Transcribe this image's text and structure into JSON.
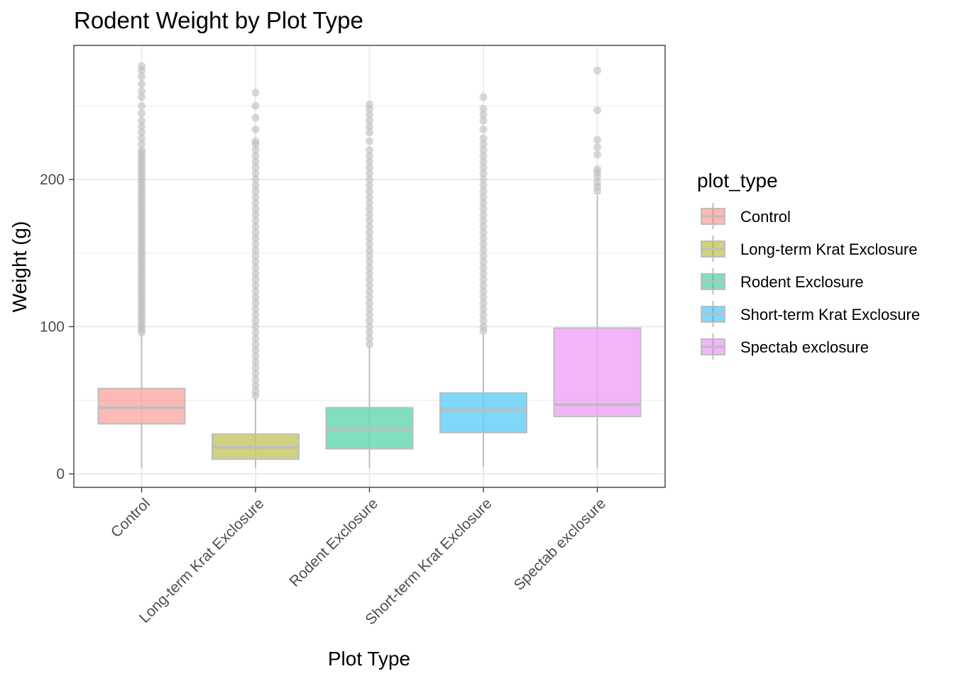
{
  "chart_data": {
    "type": "box",
    "title": "Rodent Weight by Plot Type",
    "xlabel": "Plot Type",
    "ylabel": "Weight (g)",
    "ylim": [
      -9,
      292
    ],
    "y_ticks": [
      0,
      100,
      200
    ],
    "grid": true,
    "legend": {
      "title": "plot_type",
      "position": "right",
      "entries": [
        {
          "label": "Control",
          "color": "#F8766D"
        },
        {
          "label": "Long-term Krat Exclosure",
          "color": "#A3A500"
        },
        {
          "label": "Rodent Exclosure",
          "color": "#00BF7D"
        },
        {
          "label": "Short-term Krat Exclosure",
          "color": "#00B0F6"
        },
        {
          "label": "Spectab exclosure",
          "color": "#E76BF3"
        }
      ]
    },
    "categories": [
      "Control",
      "Long-term Krat Exclosure",
      "Rodent Exclosure",
      "Short-term Krat Exclosure",
      "Spectab exclosure"
    ],
    "boxes": [
      {
        "category": "Control",
        "color": "#F8766D",
        "whisker_low": 4,
        "q1": 34,
        "median": 45,
        "q3": 58,
        "whisker_high": 94,
        "outliers": [
          96,
          98,
          100,
          102,
          104,
          106,
          108,
          110,
          112,
          114,
          116,
          118,
          120,
          122,
          124,
          126,
          128,
          130,
          132,
          134,
          136,
          138,
          140,
          142,
          144,
          146,
          148,
          150,
          152,
          154,
          156,
          158,
          160,
          162,
          164,
          166,
          168,
          170,
          172,
          174,
          176,
          178,
          180,
          182,
          184,
          186,
          188,
          190,
          192,
          194,
          196,
          198,
          200,
          202,
          204,
          206,
          208,
          210,
          212,
          214,
          216,
          218,
          220,
          224,
          228,
          232,
          236,
          240,
          245,
          250,
          256,
          260,
          265,
          270,
          274,
          277
        ]
      },
      {
        "category": "Long-term Krat Exclosure",
        "color": "#A3A500",
        "whisker_low": 4,
        "q1": 10,
        "median": 18,
        "q3": 27,
        "whisker_high": 51,
        "outliers": [
          53,
          56,
          60,
          64,
          68,
          72,
          76,
          80,
          84,
          88,
          92,
          96,
          100,
          104,
          108,
          112,
          116,
          120,
          124,
          128,
          132,
          136,
          140,
          144,
          148,
          152,
          156,
          160,
          164,
          168,
          172,
          176,
          180,
          184,
          188,
          192,
          196,
          200,
          204,
          208,
          212,
          216,
          220,
          224,
          226,
          234,
          242,
          250,
          259
        ]
      },
      {
        "category": "Rodent Exclosure",
        "color": "#00BF7D",
        "whisker_low": 4,
        "q1": 17,
        "median": 30,
        "q3": 45,
        "whisker_high": 86,
        "outliers": [
          88,
          92,
          96,
          100,
          104,
          108,
          112,
          116,
          120,
          124,
          128,
          132,
          136,
          140,
          144,
          148,
          152,
          156,
          160,
          164,
          168,
          172,
          176,
          180,
          184,
          188,
          192,
          196,
          200,
          204,
          208,
          212,
          216,
          220,
          226,
          232,
          236,
          240,
          244,
          248,
          251
        ]
      },
      {
        "category": "Short-term Krat Exclosure",
        "color": "#00B0F6",
        "whisker_low": 5,
        "q1": 28,
        "median": 43,
        "q3": 55,
        "whisker_high": 95,
        "outliers": [
          97,
          100,
          104,
          108,
          112,
          116,
          120,
          124,
          128,
          132,
          136,
          140,
          144,
          148,
          152,
          156,
          160,
          164,
          168,
          172,
          176,
          180,
          184,
          188,
          192,
          196,
          200,
          204,
          208,
          212,
          216,
          220,
          224,
          228,
          234,
          240,
          244,
          248,
          256
        ]
      },
      {
        "category": "Spectab exclosure",
        "color": "#E76BF3",
        "whisker_low": 4,
        "q1": 39,
        "median": 47,
        "q3": 99,
        "whisker_high": 189,
        "outliers": [
          192,
          195,
          198,
          202,
          205,
          207,
          217,
          222,
          227,
          247,
          274
        ]
      }
    ]
  }
}
